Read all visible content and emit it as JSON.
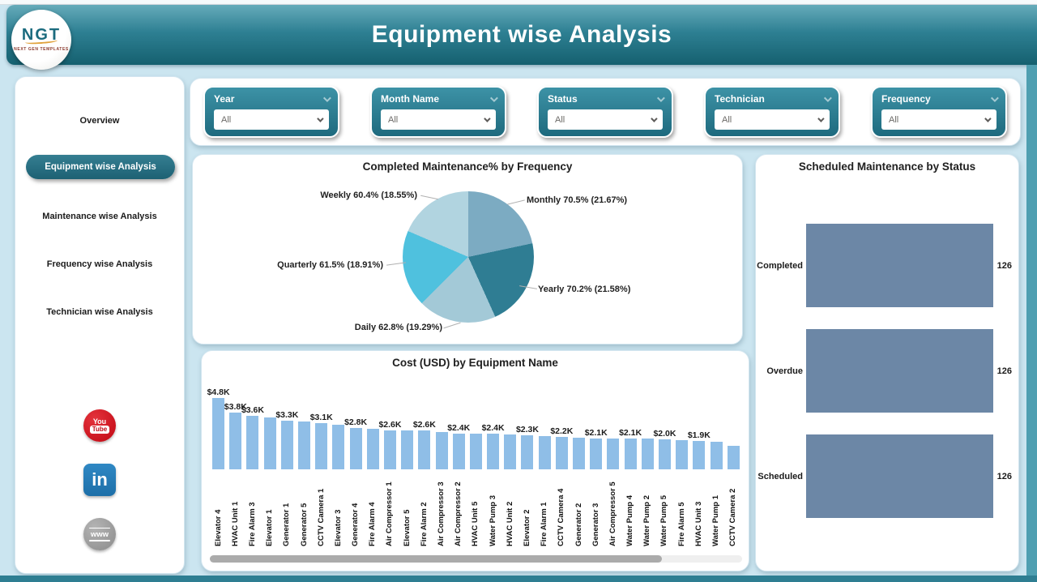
{
  "header": {
    "title": "Equipment wise Analysis",
    "logo": {
      "text": "NGT",
      "subtext": "NEXT GEN TEMPLATES"
    }
  },
  "sidebar": {
    "items": [
      {
        "label": "Overview",
        "active": false
      },
      {
        "label": "Equipment wise Analysis",
        "active": true
      },
      {
        "label": "Maintenance wise Analysis",
        "active": false
      },
      {
        "label": "Frequency wise Analysis",
        "active": false
      },
      {
        "label": "Technician wise Analysis",
        "active": false
      }
    ],
    "social": [
      {
        "name": "youtube",
        "text_top": "You",
        "text_box": "Tube"
      },
      {
        "name": "linkedin",
        "text": "in"
      },
      {
        "name": "website",
        "text": "www"
      }
    ]
  },
  "filters": [
    {
      "label": "Year",
      "value": "All"
    },
    {
      "label": "Month Name",
      "value": "All"
    },
    {
      "label": "Status",
      "value": "All"
    },
    {
      "label": "Technician",
      "value": "All"
    },
    {
      "label": "Frequency",
      "value": "All"
    }
  ],
  "chart_data": [
    {
      "type": "pie",
      "title": "Completed Maintenance% by Frequency",
      "note": "slices ordered clockwise from 12 o'clock; share_pct sums to 100",
      "slices": [
        {
          "label": "Monthly",
          "completed_pct": 70.5,
          "share_pct": 21.67,
          "color": "#7CABC2",
          "text": "Monthly 70.5% (21.67%)"
        },
        {
          "label": "Yearly",
          "completed_pct": 70.2,
          "share_pct": 21.58,
          "color": "#2F7D93",
          "text": "Yearly 70.2% (21.58%)"
        },
        {
          "label": "Daily",
          "completed_pct": 62.8,
          "share_pct": 19.29,
          "color": "#A3C9D7",
          "text": "Daily 62.8% (19.29%)"
        },
        {
          "label": "Quarterly",
          "completed_pct": 61.5,
          "share_pct": 18.91,
          "color": "#4FC1DE",
          "text": "Quarterly 61.5% (18.91%)"
        },
        {
          "label": "Weekly",
          "completed_pct": 60.4,
          "share_pct": 18.55,
          "color": "#B1D4E0",
          "text": "Weekly 60.4% (18.55%)"
        }
      ]
    },
    {
      "type": "bar",
      "title": "Cost (USD) by Equipment Name",
      "xlabel": "Equipment Name",
      "ylabel": "Cost (USD)",
      "ylim": [
        0,
        4.8
      ],
      "unit": "K USD",
      "bar_color": "#8FBEE7",
      "categories": [
        "Elevator 4",
        "HVAC Unit 1",
        "Fire Alarm 3",
        "Elevator 1",
        "Generator 1",
        "Generator 5",
        "CCTV Camera 1",
        "Elevator 3",
        "Generator 4",
        "Fire Alarm 4",
        "Air Compressor 1",
        "Elevator 5",
        "Fire Alarm 2",
        "Air Compressor 3",
        "Air Compressor 2",
        "HVAC Unit 5",
        "Water Pump 3",
        "HVAC Unit 2",
        "Elevator 2",
        "Fire Alarm 1",
        "CCTV Camera 4",
        "Generator 2",
        "Generator 3",
        "Air Compressor 5",
        "Water Pump 4",
        "Water Pump 2",
        "Water Pump 5",
        "Fire Alarm 5",
        "HVAC Unit 3",
        "Water Pump 1",
        "CCTV Camera 2"
      ],
      "values": [
        4.8,
        3.8,
        3.6,
        3.5,
        3.3,
        3.2,
        3.1,
        3.0,
        2.8,
        2.75,
        2.6,
        2.6,
        2.6,
        2.5,
        2.4,
        2.4,
        2.4,
        2.35,
        2.3,
        2.25,
        2.2,
        2.15,
        2.1,
        2.1,
        2.1,
        2.05,
        2.0,
        1.95,
        1.9,
        1.85,
        1.6
      ],
      "labels": [
        "$4.8K",
        "$3.8K",
        "$3.6K",
        null,
        "$3.3K",
        null,
        "$3.1K",
        null,
        "$2.8K",
        null,
        "$2.6K",
        null,
        "$2.6K",
        null,
        "$2.4K",
        null,
        "$2.4K",
        null,
        "$2.3K",
        null,
        "$2.2K",
        null,
        "$2.1K",
        null,
        "$2.1K",
        null,
        "$2.0K",
        null,
        "$1.9K",
        null,
        null
      ]
    },
    {
      "type": "bar-horizontal",
      "title": "Scheduled Maintenance by Status",
      "categories": [
        "Completed",
        "Overdue",
        "Scheduled"
      ],
      "values": [
        126,
        126,
        126
      ],
      "xlim": [
        0,
        126
      ],
      "bar_color": "#6C87A6"
    }
  ]
}
